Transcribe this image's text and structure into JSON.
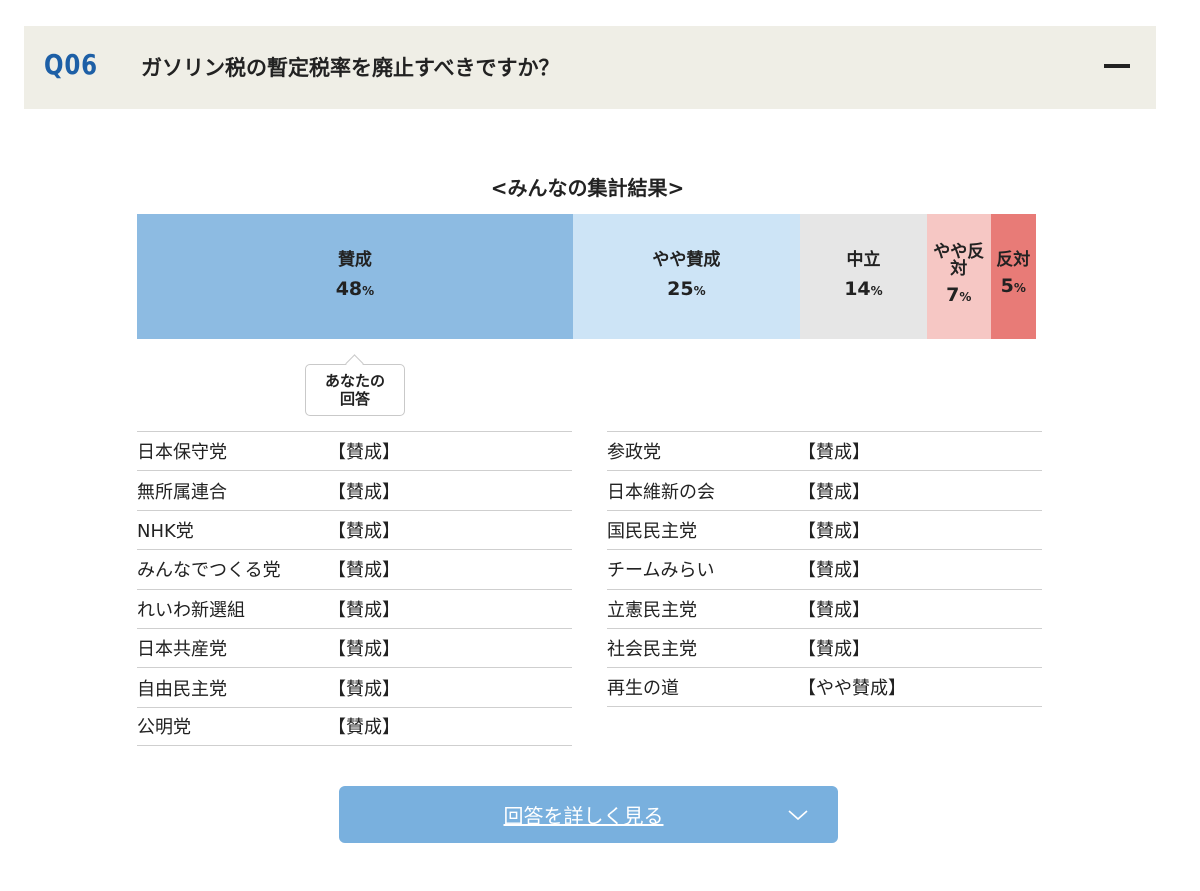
{
  "question": {
    "number": "Q06",
    "title": "ガソリン税の暫定税率を廃止すべきですか？",
    "collapse_icon": "minus-icon"
  },
  "summary_title": "<みんなの集計結果>",
  "chart_data": {
    "type": "bar",
    "orientation": "horizontal-stacked",
    "categories": [
      "賛成",
      "やや賛成",
      "中立",
      "やや反対",
      "反対"
    ],
    "values": [
      48,
      25,
      14,
      7,
      5
    ],
    "value_labels": [
      "48%",
      "25%",
      "14%",
      "7%",
      "5%"
    ],
    "colors": [
      "#8dbbe2",
      "#cde4f6",
      "#e6e6e6",
      "#f6c7c4",
      "#e87b77"
    ]
  },
  "your_answer_label": "あなたの回答",
  "parties_left": [
    {
      "name": "日本保守党",
      "stance": "【賛成】"
    },
    {
      "name": "無所属連合",
      "stance": "【賛成】"
    },
    {
      "name": "NHK党",
      "stance": "【賛成】"
    },
    {
      "name": "みんなでつくる党",
      "stance": "【賛成】"
    },
    {
      "name": "れいわ新選組",
      "stance": "【賛成】"
    },
    {
      "name": "日本共産党",
      "stance": "【賛成】"
    },
    {
      "name": "自由民主党",
      "stance": "【賛成】"
    },
    {
      "name": "公明党",
      "stance": "【賛成】"
    }
  ],
  "parties_right": [
    {
      "name": "参政党",
      "stance": "【賛成】"
    },
    {
      "name": "日本維新の会",
      "stance": "【賛成】"
    },
    {
      "name": "国民民主党",
      "stance": "【賛成】"
    },
    {
      "name": "チームみらい",
      "stance": "【賛成】"
    },
    {
      "name": "立憲民主党",
      "stance": "【賛成】"
    },
    {
      "name": "社会民主党",
      "stance": "【賛成】"
    },
    {
      "name": "再生の道",
      "stance": "【やや賛成】"
    }
  ],
  "detail_button": {
    "label": "回答を詳しく見る",
    "icon": "chevron-down-icon"
  }
}
